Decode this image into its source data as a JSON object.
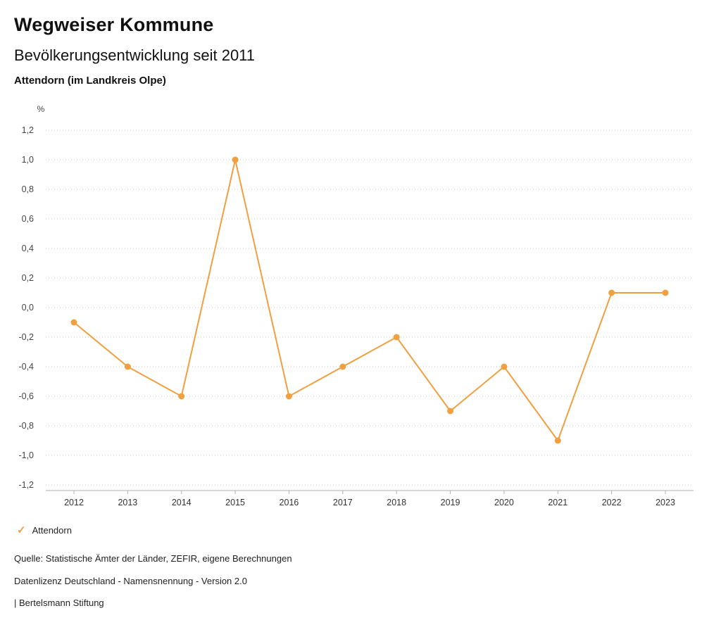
{
  "header": {
    "title": "Wegweiser Kommune",
    "subtitle": "Bevölkerungsentwicklung seit 2011",
    "region": "Attendorn (im Landkreis Olpe)"
  },
  "chart_data": {
    "type": "line",
    "title": "Bevölkerungsentwicklung seit 2011",
    "unit_label": "%",
    "categories": [
      "2012",
      "2013",
      "2014",
      "2015",
      "2016",
      "2017",
      "2018",
      "2019",
      "2020",
      "2021",
      "2022",
      "2023"
    ],
    "series": [
      {
        "name": "Attendorn",
        "color": "#f0a040",
        "values": [
          -0.1,
          -0.4,
          -0.6,
          1.0,
          -0.6,
          -0.4,
          -0.2,
          -0.7,
          -0.4,
          -0.9,
          0.1,
          0.1
        ]
      }
    ],
    "ylim": [
      -1.2,
      1.2
    ],
    "ytick_step": 0.2,
    "ytick_labels": [
      "1,2",
      "1,0",
      "0,8",
      "0,6",
      "0,4",
      "0,2",
      "0,0",
      "-0,2",
      "-0,4",
      "-0,6",
      "-0,8",
      "-1,0",
      "-1,2"
    ],
    "grid": true,
    "legend_position": "bottom"
  },
  "legend": {
    "items": [
      {
        "label": "Attendorn",
        "icon": "check-icon",
        "color": "#f0a040"
      }
    ]
  },
  "footer": {
    "source": "Quelle: Statistische Ämter der Länder, ZEFIR, eigene Berechnungen",
    "license": "Datenlizenz Deutschland - Namensnennung - Version 2.0",
    "attribution": "| Bertelsmann Stiftung"
  }
}
